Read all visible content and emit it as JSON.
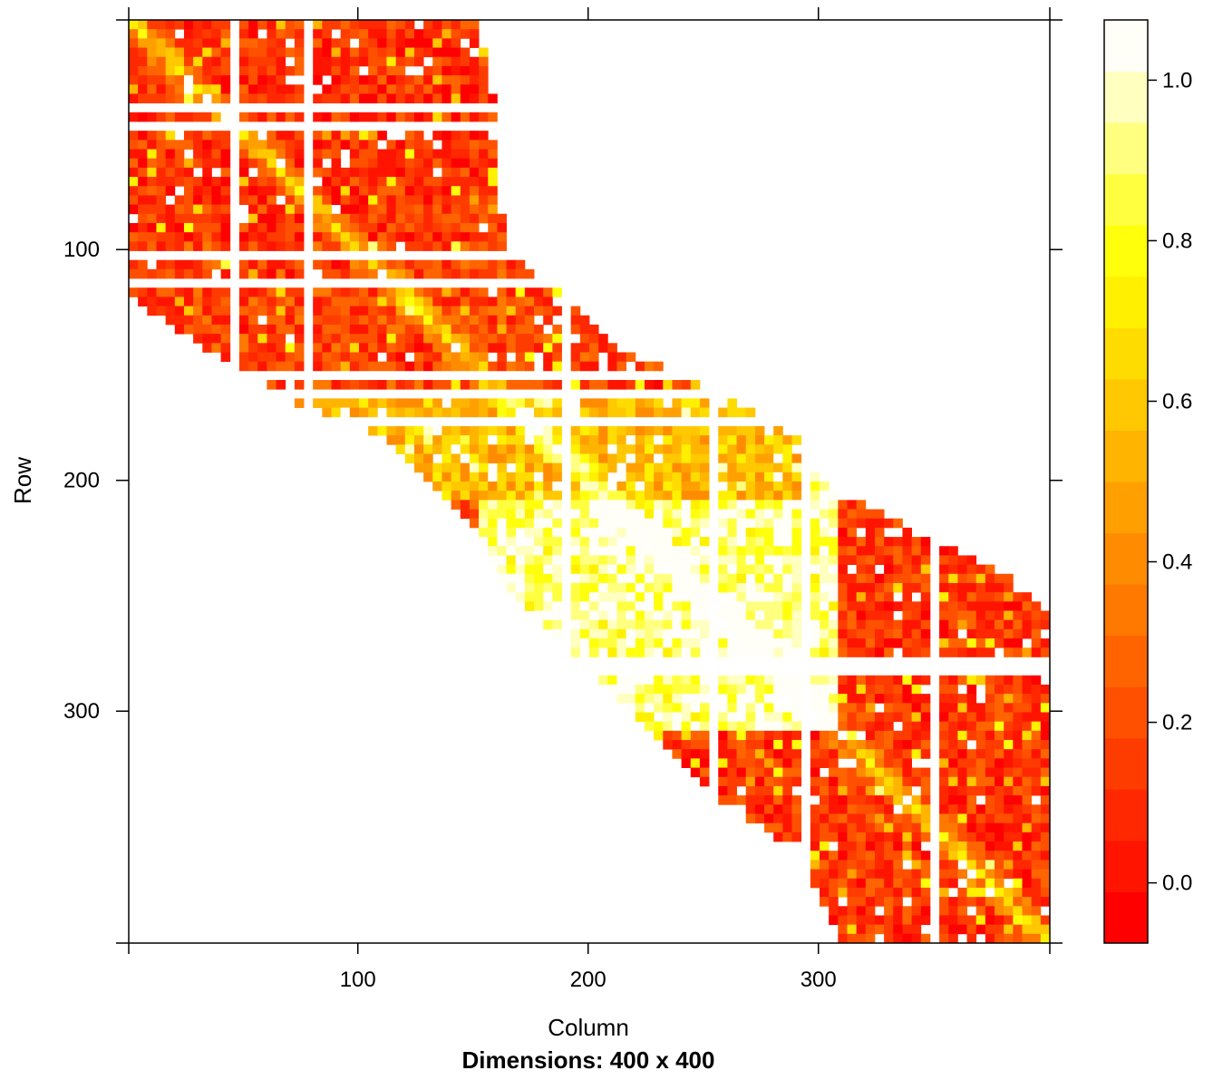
{
  "chart_data": {
    "type": "heatmap",
    "title": "Dimensions: 400 x 400",
    "xlabel": "Column",
    "ylabel": "Row",
    "nrows": 400,
    "ncols": 400,
    "xlim": [
      0.5,
      400.5
    ],
    "ylim": [
      0.5,
      400.5
    ],
    "y_axis_reversed": true,
    "x_ticks": [
      100,
      200,
      300
    ],
    "y_ticks": [
      100,
      200,
      300
    ],
    "colorbar": {
      "range": [
        -0.075,
        1.075
      ],
      "ticks": [
        0.0,
        0.2,
        0.4,
        0.6,
        0.8,
        1.0
      ],
      "tick_labels": [
        "0.0",
        "0.2",
        "0.4",
        "0.6",
        "0.8",
        "1.0"
      ],
      "bins": 18,
      "colors": [
        "#ff0000",
        "#ff1400",
        "#ff2800",
        "#ff3c00",
        "#ff5000",
        "#ff6400",
        "#ff7800",
        "#ff8c00",
        "#ffa000",
        "#ffb400",
        "#ffc800",
        "#ffdc00",
        "#fff000",
        "#ffff0c",
        "#ffff40",
        "#ffff80",
        "#ffffbf",
        "#fffff8"
      ]
    },
    "band_profile": [
      [
        1,
        1,
        150
      ],
      [
        40,
        1,
        160
      ],
      [
        80,
        1,
        160
      ],
      [
        100,
        1,
        165
      ],
      [
        120,
        1,
        190
      ],
      [
        140,
        30,
        210
      ],
      [
        160,
        60,
        255
      ],
      [
        180,
        110,
        290
      ],
      [
        200,
        130,
        300
      ],
      [
        220,
        150,
        340
      ],
      [
        240,
        160,
        380
      ],
      [
        260,
        180,
        400
      ],
      [
        280,
        200,
        400
      ],
      [
        300,
        220,
        400
      ],
      [
        320,
        240,
        400
      ],
      [
        340,
        260,
        400
      ],
      [
        360,
        290,
        400
      ],
      [
        380,
        300,
        400
      ],
      [
        400,
        310,
        400
      ]
    ],
    "blocks": [
      {
        "rows": [
          1,
          96
        ],
        "cols": [
          1,
          160
        ],
        "level": 0.12
      },
      {
        "rows": [
          97,
          162
        ],
        "cols": [
          1,
          210
        ],
        "level": 0.16
      },
      {
        "rows": [
          163,
          205
        ],
        "cols": [
          60,
          290
        ],
        "level": 0.55
      },
      {
        "rows": [
          195,
          305
        ],
        "cols": [
          150,
          305
        ],
        "level": 0.92
      },
      {
        "rows": [
          205,
          305
        ],
        "cols": [
          306,
          400
        ],
        "level": 0.12
      },
      {
        "rows": [
          306,
          400
        ],
        "cols": [
          200,
          400
        ],
        "level": 0.12
      }
    ]
  }
}
